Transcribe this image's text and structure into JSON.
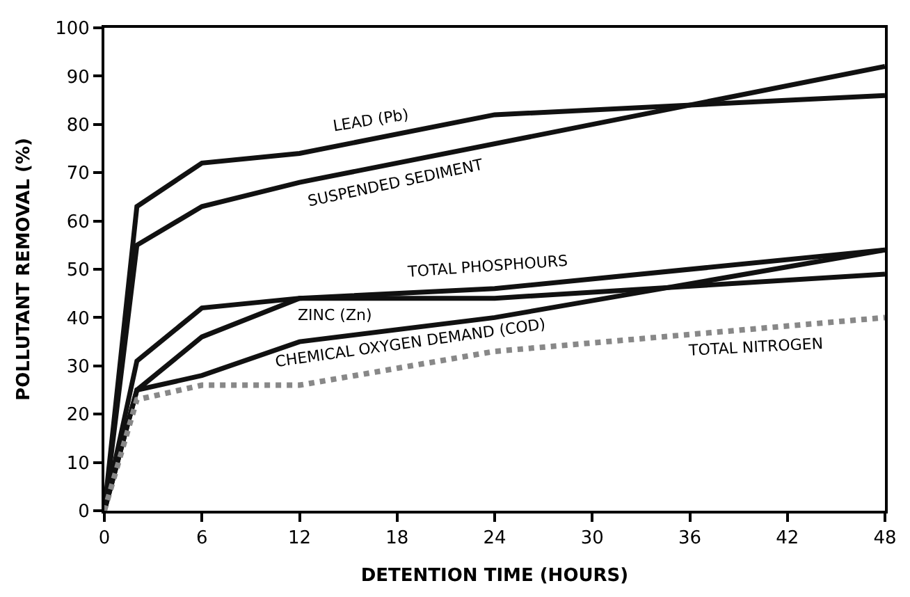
{
  "chart_data": {
    "type": "line",
    "xlabel": "DETENTION TIME (HOURS)",
    "ylabel": "POLLUTANT REMOVAL (%)",
    "xlim": [
      0,
      48
    ],
    "xticks": [
      0,
      6,
      12,
      18,
      24,
      30,
      36,
      42,
      48
    ],
    "ylim": [
      0,
      100
    ],
    "yticks": [
      0,
      10,
      20,
      30,
      40,
      50,
      60,
      70,
      80,
      90,
      100
    ],
    "grid": false,
    "marker": "none",
    "series": [
      {
        "name": "LEAD (Pb)",
        "color": "#111111",
        "line_style": "solid",
        "x": [
          0,
          2,
          6,
          12,
          24,
          48
        ],
        "values": [
          0,
          63,
          72,
          74,
          82,
          86
        ]
      },
      {
        "name": "SUSPENDED SEDIMENT",
        "color": "#111111",
        "line_style": "solid",
        "x": [
          0,
          2,
          6,
          12,
          48
        ],
        "values": [
          0,
          55,
          63,
          68,
          92
        ]
      },
      {
        "name": "TOTAL PHOSPHOURS",
        "color": "#111111",
        "line_style": "solid",
        "x": [
          0,
          2,
          6,
          12,
          24,
          48
        ],
        "values": [
          0,
          31,
          42,
          44,
          46,
          54
        ]
      },
      {
        "name": "ZINC (Zn)",
        "color": "#111111",
        "line_style": "solid",
        "x": [
          0,
          2,
          6,
          12,
          24,
          48
        ],
        "values": [
          0,
          25,
          36,
          44,
          44,
          49
        ]
      },
      {
        "name": "CHEMICAL OXYGEN DEMAND (COD)",
        "color": "#111111",
        "line_style": "solid",
        "x": [
          0,
          2,
          6,
          12,
          24,
          48
        ],
        "values": [
          0,
          25,
          28,
          35,
          40,
          54
        ]
      },
      {
        "name": "TOTAL NITROGEN",
        "color": "#888888",
        "line_style": "dotted",
        "x": [
          0,
          2,
          6,
          12,
          24,
          48
        ],
        "values": [
          0,
          23,
          26,
          26,
          33,
          40
        ]
      }
    ]
  }
}
